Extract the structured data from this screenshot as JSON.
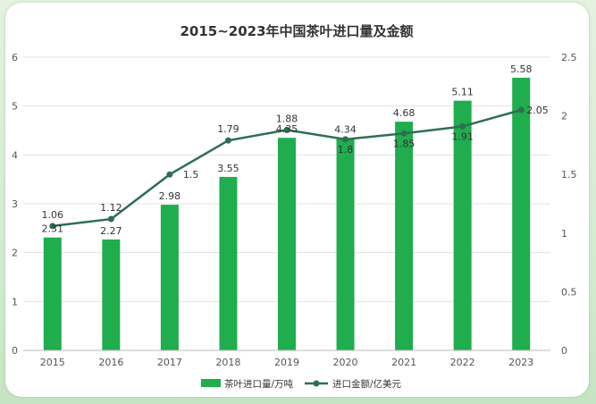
{
  "chart_data": {
    "type": "bar+line",
    "title": "2015~2023年中国茶叶进口量及金额",
    "categories": [
      "2015",
      "2016",
      "2017",
      "2018",
      "2019",
      "2020",
      "2021",
      "2022",
      "2023"
    ],
    "series": [
      {
        "name": "茶叶进口量/万吨",
        "type": "bar",
        "axis": "left",
        "color": "#1fad4d",
        "values": [
          2.31,
          2.27,
          2.98,
          3.55,
          4.35,
          4.34,
          4.68,
          5.11,
          5.58
        ]
      },
      {
        "name": "进口金额/亿美元",
        "type": "line",
        "axis": "right",
        "color": "#2f6e52",
        "values": [
          1.06,
          1.12,
          1.5,
          1.79,
          1.88,
          1.8,
          1.85,
          1.91,
          2.05
        ]
      }
    ],
    "y_left": {
      "ylim": [
        0,
        6
      ],
      "ticks": [
        "0",
        "1",
        "2",
        "3",
        "4",
        "5",
        "6"
      ]
    },
    "y_right": {
      "ylim": [
        0,
        2.5
      ],
      "ticks": [
        "0",
        "0.5",
        "1",
        "1.5",
        "2",
        "2.5"
      ]
    },
    "grid": true,
    "legend_position": "bottom"
  }
}
